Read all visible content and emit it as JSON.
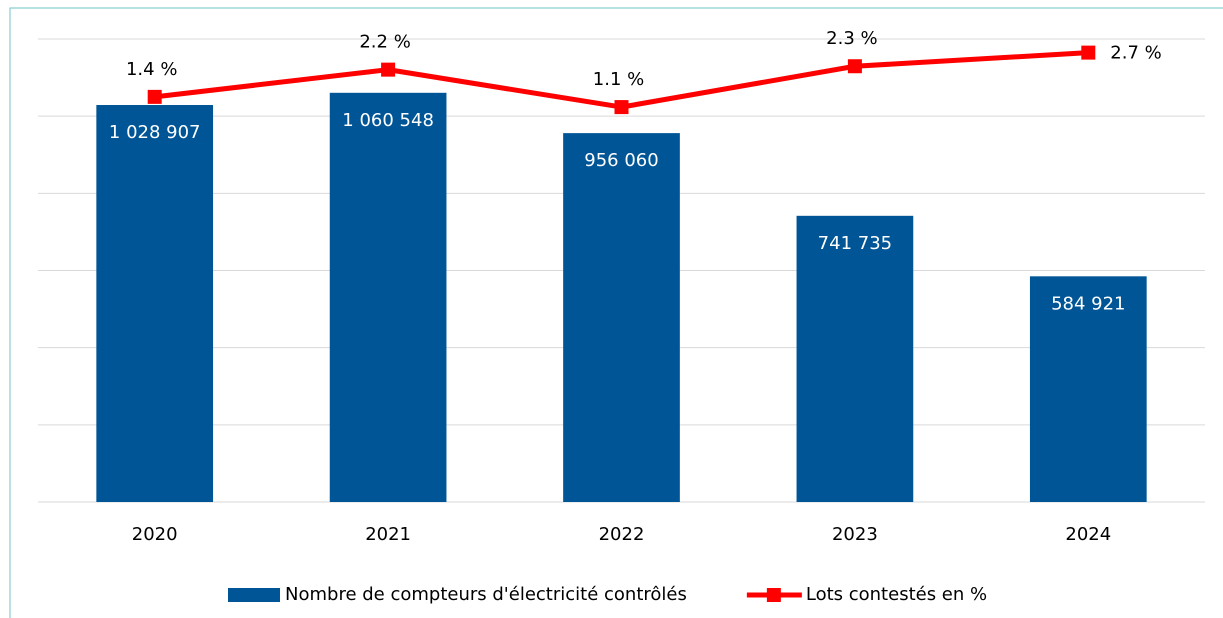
{
  "chart_data": {
    "type": "bar_line",
    "categories": [
      "2020",
      "2021",
      "2022",
      "2023",
      "2024"
    ],
    "series": [
      {
        "name": "Nombre de compteurs d'électricité contrôlés",
        "type": "bar",
        "color": "#005596",
        "values": [
          1028907,
          1060548,
          956060,
          741735,
          584921
        ],
        "value_labels": [
          "1 028 907",
          "1 060 548",
          "956 060",
          "741 735",
          "584 921"
        ]
      },
      {
        "name": "Lots contestés en %",
        "type": "line",
        "color": "#ff0000",
        "axis": "y2",
        "values": [
          1.4,
          2.2,
          1.1,
          2.3,
          2.7
        ],
        "value_labels": [
          "1.4 %",
          "2.2 %",
          "1.1 %",
          "2.3 %",
          "2.7 %"
        ]
      }
    ],
    "ylim": [
      0,
      1200000
    ],
    "yticks": [
      0,
      200000,
      400000,
      600000,
      800000,
      1000000,
      1200000
    ],
    "y2lim": [
      -10.5,
      3.1
    ],
    "grid": true,
    "legend": "bottom"
  }
}
